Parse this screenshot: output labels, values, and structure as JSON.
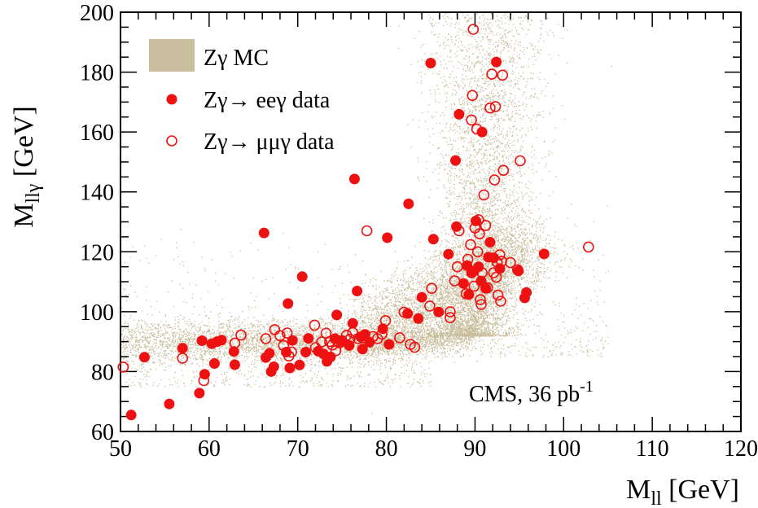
{
  "chart_data": {
    "type": "scatter",
    "x_axis": {
      "label_main": "M",
      "label_sub": "ll",
      "label_unit": " [GeV]",
      "range": [
        50,
        120
      ],
      "ticks": [
        50,
        60,
        70,
        80,
        90,
        100,
        110,
        120
      ]
    },
    "y_axis": {
      "label_main": "M",
      "label_sub": "llγ",
      "label_unit": " [GeV]",
      "range": [
        60,
        200
      ],
      "ticks": [
        60,
        80,
        100,
        120,
        140,
        160,
        180,
        200
      ]
    },
    "annotation": {
      "text": "CMS, 36 pb",
      "sup": "-1"
    },
    "legend": {
      "placement": "top-left",
      "entries": [
        {
          "key": "mc",
          "label": "Zγ MC"
        },
        {
          "key": "ee",
          "label": "Zγ→ eeγ data"
        },
        {
          "key": "mumu",
          "label": "Zγ→ μμγ data"
        }
      ]
    },
    "colors": {
      "mc": "#c8bd9c",
      "data": "#ee1111",
      "axis": "#000000"
    },
    "mc_band": {
      "description_points": [
        [
          50,
          91
        ],
        [
          55,
          90.5
        ],
        [
          60,
          90
        ],
        [
          65,
          89.5
        ],
        [
          70,
          89
        ],
        [
          75,
          89
        ],
        [
          80,
          90
        ],
        [
          84,
          93
        ],
        [
          87,
          100
        ],
        [
          89,
          112
        ],
        [
          90,
          125
        ],
        [
          91,
          140
        ],
        [
          92,
          160
        ],
        [
          92.5,
          180
        ],
        [
          93,
          200
        ]
      ]
    },
    "series": [
      {
        "name": "Zγ→ eeγ data",
        "marker": "filled-circle",
        "points": [
          [
            51.2,
            65.5
          ],
          [
            52.7,
            84.8
          ],
          [
            55.5,
            69.2
          ],
          [
            57.0,
            87.8
          ],
          [
            58.9,
            72.8
          ],
          [
            59.2,
            90.3
          ],
          [
            59.5,
            79.1
          ],
          [
            60.3,
            89.3
          ],
          [
            60.6,
            82.7
          ],
          [
            60.9,
            90.0
          ],
          [
            61.4,
            90.5
          ],
          [
            62.8,
            86.7
          ],
          [
            62.9,
            82.3
          ],
          [
            66.2,
            126.3
          ],
          [
            66.4,
            84.7
          ],
          [
            66.8,
            86.1
          ],
          [
            67.0,
            80.0
          ],
          [
            67.3,
            81.6
          ],
          [
            68.7,
            86.5
          ],
          [
            68.9,
            102.7
          ],
          [
            69.1,
            81.2
          ],
          [
            69.4,
            90.4
          ],
          [
            70.2,
            82.2
          ],
          [
            70.5,
            111.7
          ],
          [
            70.9,
            86.5
          ],
          [
            71.2,
            91.1
          ],
          [
            72.3,
            86.8
          ],
          [
            72.9,
            85.9
          ],
          [
            73.3,
            83.4
          ],
          [
            73.7,
            84.9
          ],
          [
            74.2,
            91.0
          ],
          [
            74.4,
            98.9
          ],
          [
            75.0,
            90.4
          ],
          [
            75.8,
            88.7
          ],
          [
            76.2,
            96.1
          ],
          [
            76.4,
            144.3
          ],
          [
            76.7,
            106.9
          ],
          [
            77.1,
            91.6
          ],
          [
            77.3,
            87.5
          ],
          [
            77.6,
            92.4
          ],
          [
            78.1,
            89.8
          ],
          [
            79.6,
            94.3
          ],
          [
            80.1,
            124.7
          ],
          [
            80.3,
            89.1
          ],
          [
            82.4,
            99.4
          ],
          [
            82.5,
            136.0
          ],
          [
            83.6,
            97.7
          ],
          [
            84.0,
            104.8
          ],
          [
            85.0,
            183.0
          ],
          [
            85.3,
            124.2
          ],
          [
            85.9,
            99.9
          ],
          [
            87.0,
            119.2
          ],
          [
            87.8,
            150.5
          ],
          [
            87.9,
            128.4
          ],
          [
            88.2,
            165.9
          ],
          [
            88.7,
            109.4
          ],
          [
            89.1,
            115.4
          ],
          [
            89.3,
            105.7
          ],
          [
            89.6,
            112.9
          ],
          [
            89.9,
            113.6
          ],
          [
            90.1,
            130.3
          ],
          [
            90.4,
            115.0
          ],
          [
            90.8,
            160.0
          ],
          [
            90.7,
            110.2
          ],
          [
            91.2,
            107.8
          ],
          [
            91.5,
            118.2
          ],
          [
            91.7,
            123.2
          ],
          [
            92.1,
            118.0
          ],
          [
            92.4,
            183.4
          ],
          [
            92.8,
            114.4
          ],
          [
            94.9,
            113.6
          ],
          [
            95.6,
            104.6
          ],
          [
            95.8,
            106.4
          ],
          [
            97.8,
            119.3
          ]
        ]
      },
      {
        "name": "Zγ→ μμγ data",
        "marker": "open-circle",
        "points": [
          [
            50.3,
            81.5
          ],
          [
            57.0,
            84.5
          ],
          [
            59.4,
            77.0
          ],
          [
            62.9,
            89.5
          ],
          [
            63.6,
            92.2
          ],
          [
            66.4,
            91.0
          ],
          [
            67.4,
            94.0
          ],
          [
            68.0,
            92.0
          ],
          [
            68.4,
            88.7
          ],
          [
            68.8,
            92.9
          ],
          [
            69.0,
            85.2
          ],
          [
            69.3,
            86.5
          ],
          [
            71.9,
            95.5
          ],
          [
            72.0,
            88.0
          ],
          [
            72.7,
            89.9
          ],
          [
            73.2,
            92.8
          ],
          [
            73.6,
            90.0
          ],
          [
            73.9,
            88.9
          ],
          [
            74.3,
            87.0
          ],
          [
            74.7,
            89.6
          ],
          [
            75.0,
            90.0
          ],
          [
            75.5,
            92.1
          ],
          [
            75.9,
            90.8
          ],
          [
            76.2,
            93.0
          ],
          [
            76.8,
            91.0
          ],
          [
            77.3,
            91.3
          ],
          [
            77.8,
            127.0
          ],
          [
            78.5,
            91.7
          ],
          [
            79.0,
            91.0
          ],
          [
            79.5,
            92.5
          ],
          [
            79.9,
            97.0
          ],
          [
            81.5,
            91.3
          ],
          [
            82.0,
            99.8
          ],
          [
            82.7,
            89.1
          ],
          [
            83.2,
            88.1
          ],
          [
            84.9,
            101.9
          ],
          [
            85.1,
            107.8
          ],
          [
            87.2,
            100.0
          ],
          [
            87.2,
            98.0
          ],
          [
            87.7,
            110.3
          ],
          [
            88.0,
            115.0
          ],
          [
            88.2,
            127.0
          ],
          [
            89.0,
            106.0
          ],
          [
            89.2,
            117.5
          ],
          [
            89.5,
            122.4
          ],
          [
            89.6,
            164.0
          ],
          [
            89.7,
            172.2
          ],
          [
            89.8,
            194.3
          ],
          [
            89.9,
            108.5
          ],
          [
            90.0,
            128.0
          ],
          [
            90.2,
            161.0
          ],
          [
            90.3,
            120.0
          ],
          [
            90.4,
            130.7
          ],
          [
            90.5,
            126.0
          ],
          [
            90.6,
            104.0
          ],
          [
            90.7,
            102.4
          ],
          [
            90.8,
            113.0
          ],
          [
            91.0,
            139.0
          ],
          [
            91.2,
            128.8
          ],
          [
            91.4,
            108.0
          ],
          [
            91.7,
            168.0
          ],
          [
            91.9,
            179.3
          ],
          [
            92.1,
            113.0
          ],
          [
            92.2,
            144.0
          ],
          [
            92.3,
            168.5
          ],
          [
            92.4,
            111.5
          ],
          [
            92.5,
            116.5
          ],
          [
            92.6,
            105.5
          ],
          [
            92.8,
            119.0
          ],
          [
            92.9,
            103.5
          ],
          [
            93.1,
            179.0
          ],
          [
            93.2,
            147.2
          ],
          [
            93.0,
            116.8
          ],
          [
            94.0,
            116.4
          ],
          [
            94.8,
            114.0
          ],
          [
            95.1,
            150.4
          ],
          [
            102.8,
            121.6
          ]
        ]
      }
    ]
  }
}
